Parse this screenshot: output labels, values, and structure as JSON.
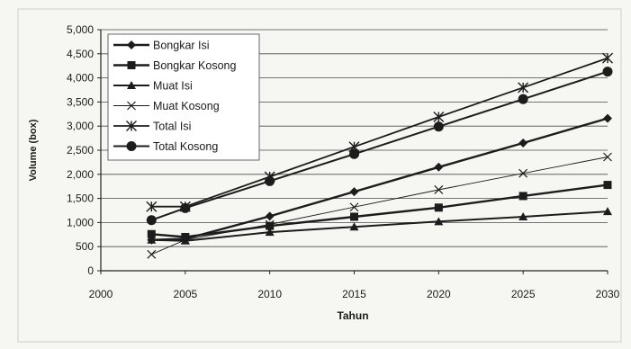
{
  "chart_data": {
    "type": "line",
    "title": "",
    "xlabel": "Tahun",
    "ylabel": "Volume (box)",
    "xlim": [
      2000,
      2030
    ],
    "ylim": [
      0,
      5000
    ],
    "x_ticks": [
      2000,
      2005,
      2010,
      2015,
      2020,
      2025,
      2030
    ],
    "x_tick_labels": [
      "2000",
      "2005",
      "2010",
      "2015",
      "2020",
      "2025",
      "2030"
    ],
    "y_ticks": [
      0,
      500,
      1000,
      1500,
      2000,
      2500,
      3000,
      3500,
      4000,
      4500,
      5000
    ],
    "y_tick_labels": [
      "0",
      "500",
      "1,000",
      "1,500",
      "2,000",
      "2,500",
      "3,000",
      "3,500",
      "4,000",
      "4,500",
      "5,000"
    ],
    "grid": "horizontal",
    "legend_position": "top-left",
    "x": [
      2003,
      2005,
      2010,
      2015,
      2020,
      2025,
      2030
    ],
    "series": [
      {
        "name": "Bongkar Isi",
        "marker": "diamond",
        "values": [
          640,
          660,
          1130,
          1640,
          2150,
          2650,
          3160
        ]
      },
      {
        "name": "Bongkar Kosong",
        "marker": "square",
        "values": [
          760,
          700,
          930,
          1120,
          1310,
          1550,
          1780
        ]
      },
      {
        "name": "Muat Isi",
        "marker": "triangle",
        "values": [
          640,
          620,
          800,
          910,
          1020,
          1120,
          1230
        ]
      },
      {
        "name": "Muat Kosong",
        "marker": "x",
        "values": [
          340,
          640,
          960,
          1320,
          1680,
          2020,
          2360
        ]
      },
      {
        "name": "Total Isi",
        "marker": "star",
        "values": [
          1330,
          1330,
          1950,
          2570,
          3190,
          3800,
          4410
        ]
      },
      {
        "name": "Total Kosong",
        "marker": "circle",
        "values": [
          1050,
          1300,
          1860,
          2420,
          2990,
          3560,
          4130
        ]
      }
    ]
  }
}
